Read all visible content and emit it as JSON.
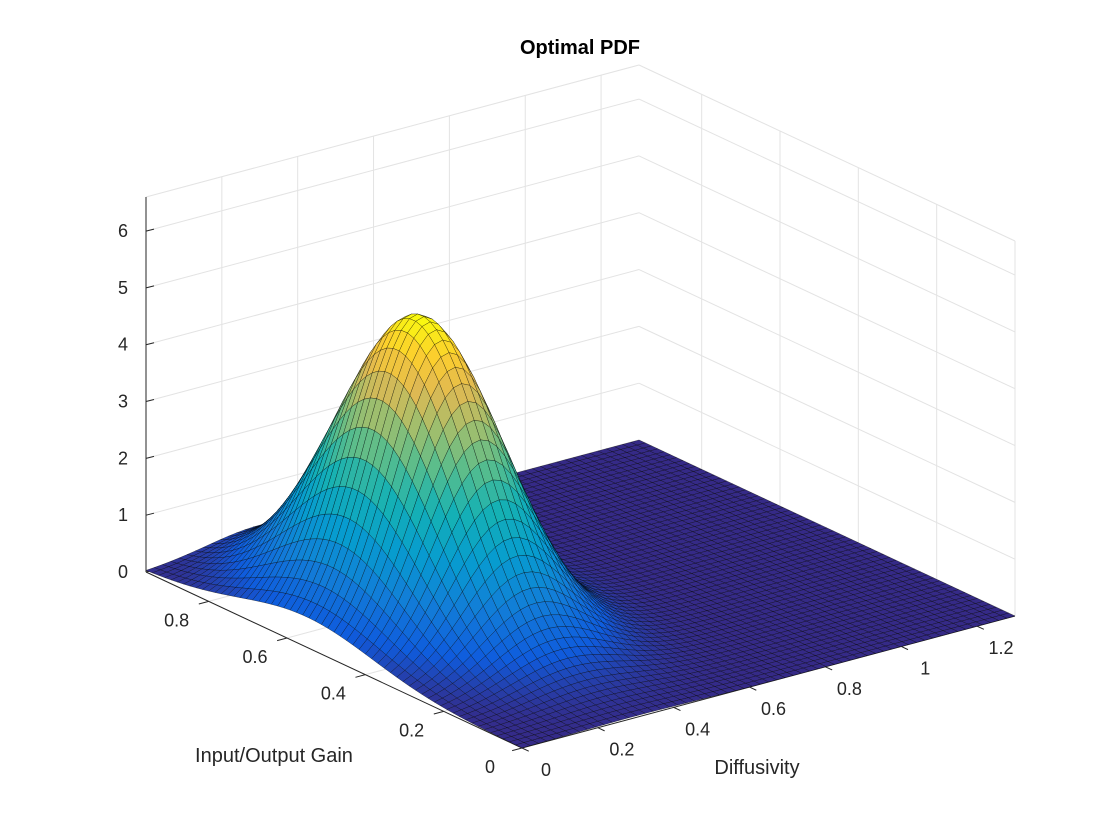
{
  "chart_data": {
    "type": "surface",
    "title": "Optimal PDF",
    "xlabel": "Diffusivity",
    "ylabel": "Input/Output Gain",
    "zlabel": "",
    "x_ticks": [
      "0",
      "0.2",
      "0.4",
      "0.6",
      "0.8",
      "1",
      "1.2"
    ],
    "y_ticks": [
      "0",
      "0.2",
      "0.4",
      "0.6",
      "0.8"
    ],
    "z_ticks": [
      "0",
      "1",
      "2",
      "3",
      "4",
      "5",
      "6"
    ],
    "xlim": [
      0,
      1.3
    ],
    "ylim": [
      0,
      0.96
    ],
    "zlim": [
      0,
      6.6
    ],
    "grid": true,
    "colormap": "parula",
    "edge_color": "#000000",
    "peak": {
      "diffusivity": 0.3,
      "gain": 0.55,
      "density": 5.3
    },
    "spread": {
      "diffusivity": 0.14,
      "gain": 0.17
    },
    "grid_resolution": 60
  }
}
